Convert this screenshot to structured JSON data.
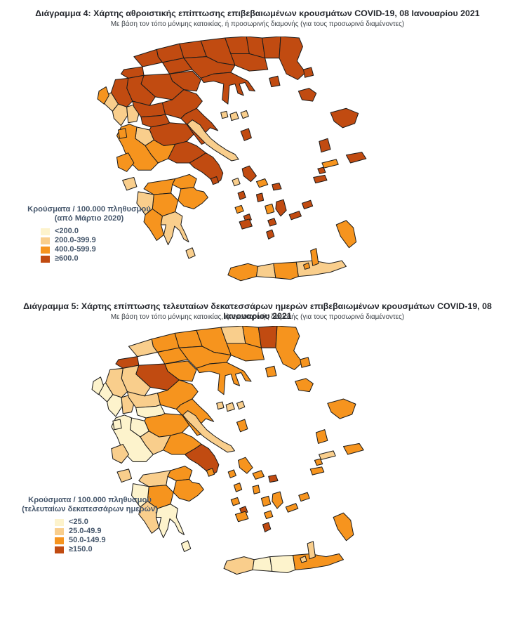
{
  "colors": {
    "scale": [
      "#FDF3CC",
      "#F9CE8C",
      "#F6941E",
      "#C14B11"
    ],
    "region_border": "#1b1b1b",
    "title_text": "#23262c",
    "legend_text": "#45566b",
    "sea": "#ffffff"
  },
  "map1": {
    "title": "Διάγραμμα 4: Χάρτης αθροιστικής επίπτωσης επιβεβαιωμένων κρουσμάτων COVID-19, 08 Ιανουαρίου 2021",
    "subtitle": "Με βάση τον τόπο μόνιμης κατοικίας, ή προσωρινής διαμονής (για τους προσωρινά διαμένοντες)",
    "legend": {
      "title": "Κρούσματα / 100.000 πληθυσμού",
      "subtitle": "(από Μάρτιο 2020)",
      "items": [
        {
          "label": "<200.0",
          "color": "#FDF3CC"
        },
        {
          "label": "200.0-399.9",
          "color": "#F9CE8C"
        },
        {
          "label": "400.0-599.9",
          "color": "#F6941E"
        },
        {
          "label": "≥600.0",
          "color": "#C14B11"
        }
      ]
    },
    "regions": {
      "florina": 4,
      "kastoria": 4,
      "pella": 4,
      "kilkis": 4,
      "serres": 4,
      "drama": 4,
      "xanthi": 4,
      "rodopi": 4,
      "evros": 4,
      "kavala": 4,
      "thessaloniki": 4,
      "imathia": 4,
      "pieria": 4,
      "kozani": 4,
      "grevena": 4,
      "chalkidiki": 4,
      "ioannina": 4,
      "thesprotia": 2,
      "preveza": 2,
      "arta": 2,
      "trikala": 4,
      "karditsa": 4,
      "larissa": 4,
      "magnesia": 4,
      "phthiotis": 4,
      "evrytania": 2,
      "aetolia": 3,
      "phocis": 3,
      "boeotia": 4,
      "attica": 4,
      "euboea": 2,
      "achaia": 3,
      "corinthia": 3,
      "argolis": 3,
      "arcadia": 3,
      "elis": 2,
      "messenia": 3,
      "laconia": 2,
      "chania": 3,
      "rethymno": 2,
      "heraklion": 3,
      "lasithi": 2,
      "corfu": 3,
      "lefkada": 3,
      "kefalonia": 3,
      "zakynthos": 2,
      "kythira": 2,
      "thasos": 4,
      "samothrace": 4,
      "lemnos": 4,
      "lesbos": 4,
      "chios": 4,
      "samos": 4,
      "ikaria": 3,
      "skiathos": 2,
      "skopelos": 2,
      "alonnisos": 2,
      "skyros": 4,
      "aegina": 4,
      "kea": 2,
      "andros": 4,
      "tinos": 3,
      "mykonos": 4,
      "syros": 4,
      "kythnos": 4,
      "serifos": 3,
      "sifnos": 4,
      "paros": 3,
      "naxos": 4,
      "milos": 4,
      "ios": 4,
      "santorini": 4,
      "amorgos": 4,
      "astypalea": 4,
      "kalymnos": 4,
      "kos": 4,
      "rhodes": 3,
      "karpathos": 3,
      "kasos": 3
    }
  },
  "map2": {
    "title": "Διάγραμμα 5: Χάρτης επίπτωσης τελευταίων δεκατεσσάρων ημερών επιβεβαιωμένων κρουσμάτων COVID-19, 08 Ιανουαρίου 2021",
    "subtitle": "Με βάση τον τόπο μόνιμης κατοικίας, ή προσωρινής διαμονής (για τους προσωρινά διαμένοντες)",
    "legend": {
      "title": "Κρούσματα / 100.000 πληθυσμού",
      "subtitle": "(τελευταίων δεκατεσσάρων ημερών)",
      "items": [
        {
          "label": "<25.0",
          "color": "#FDF3CC"
        },
        {
          "label": "25.0-49.9",
          "color": "#F9CE8C"
        },
        {
          "label": "50.0-149.9",
          "color": "#F6941E"
        },
        {
          "label": "≥150.0",
          "color": "#C14B11"
        }
      ]
    },
    "regions": {
      "florina": 2,
      "kastoria": 4,
      "pella": 3,
      "kilkis": 3,
      "serres": 3,
      "drama": 2,
      "xanthi": 3,
      "rodopi": 4,
      "evros": 3,
      "kavala": 3,
      "thessaloniki": 3,
      "imathia": 3,
      "pieria": 3,
      "kozani": 4,
      "grevena": 2,
      "chalkidiki": 3,
      "ioannina": 2,
      "thesprotia": 1,
      "preveza": 1,
      "arta": 2,
      "trikala": 2,
      "karditsa": 1,
      "larissa": 3,
      "magnesia": 3,
      "phthiotis": 3,
      "evrytania": 1,
      "aetolia": 1,
      "phocis": 2,
      "boeotia": 3,
      "attica": 4,
      "euboea": 2,
      "achaia": 2,
      "corinthia": 3,
      "argolis": 3,
      "arcadia": 3,
      "elis": 1,
      "messenia": 2,
      "laconia": 1,
      "chania": 2,
      "rethymno": 1,
      "heraklion": 1,
      "lasithi": 3,
      "corfu": 1,
      "lefkada": 1,
      "kefalonia": 2,
      "zakynthos": 2,
      "kythira": 1,
      "thasos": 3,
      "samothrace": 3,
      "lemnos": 3,
      "lesbos": 3,
      "chios": 3,
      "samos": 3,
      "ikaria": 2,
      "skiathos": 2,
      "skopelos": 2,
      "alonnisos": 2,
      "skyros": 3,
      "aegina": 3,
      "kea": 3,
      "andros": 3,
      "tinos": 3,
      "mykonos": 4,
      "syros": 3,
      "kythnos": 3,
      "serifos": 3,
      "sifnos": 4,
      "paros": 3,
      "naxos": 3,
      "milos": 3,
      "ios": 3,
      "santorini": 4,
      "amorgos": 3,
      "astypalea": 3,
      "kalymnos": 3,
      "kos": 3,
      "rhodes": 3,
      "karpathos": 2,
      "kasos": 2
    }
  }
}
